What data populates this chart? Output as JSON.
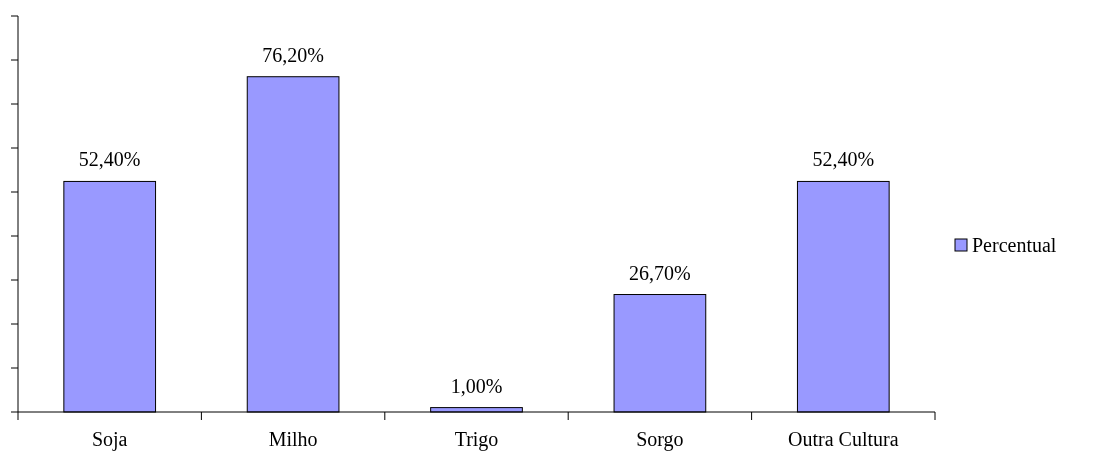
{
  "chart_data": {
    "type": "bar",
    "categories": [
      "Soja",
      "Milho",
      "Trigo",
      "Sorgo",
      "Outra Cultura"
    ],
    "series": [
      {
        "name": "Percentual",
        "color": "#9999ff",
        "values": [
          52.4,
          76.2,
          1.0,
          26.7,
          52.4
        ],
        "value_labels": [
          "52,40%",
          "76,20%",
          "1,00%",
          "26,70%",
          "52,40%"
        ]
      }
    ],
    "ylim": [
      0,
      90
    ],
    "yticks": [
      {
        "value": 0,
        "label": null
      },
      {
        "value": 10,
        "label": null
      },
      {
        "value": 20,
        "label": null
      },
      {
        "value": 30,
        "label": null
      },
      {
        "value": 40,
        "label": null
      },
      {
        "value": 50,
        "label": null
      },
      {
        "value": 60,
        "label": null
      },
      {
        "value": 70,
        "label": null
      },
      {
        "value": 80,
        "label": null
      },
      {
        "value": 90,
        "label": null
      }
    ],
    "tick_labels": "x",
    "grid": false,
    "legend": "right"
  }
}
